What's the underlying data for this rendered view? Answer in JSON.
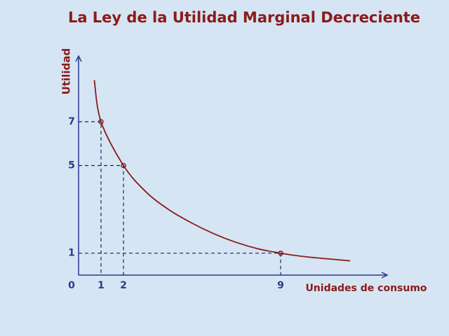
{
  "chart_data": {
    "type": "line",
    "title": "La Ley de la Utilidad Marginal Decreciente",
    "x_label": "Unidades de consumo",
    "y_label": "Utilidad",
    "x": [
      0.7,
      1,
      2,
      3,
      4,
      5,
      6,
      7,
      8,
      9,
      10,
      11,
      12.1
    ],
    "series": [
      {
        "color": "#8b1a1a",
        "values": [
          8.9,
          7,
          5,
          3.8,
          3.0,
          2.4,
          1.9,
          1.5,
          1.2,
          1,
          0.85,
          0.75,
          0.65
        ]
      }
    ],
    "markers": {
      "color": "#8b1a1a",
      "x": [
        1,
        2,
        9
      ],
      "values": [
        7,
        5,
        1
      ]
    },
    "xlim": [
      0,
      13.75
    ],
    "ylim": [
      0,
      10
    ],
    "xticks": [
      0,
      1,
      2,
      9
    ],
    "yticks": [
      1,
      5,
      7
    ],
    "axis_color": "#2b3a8c"
  }
}
